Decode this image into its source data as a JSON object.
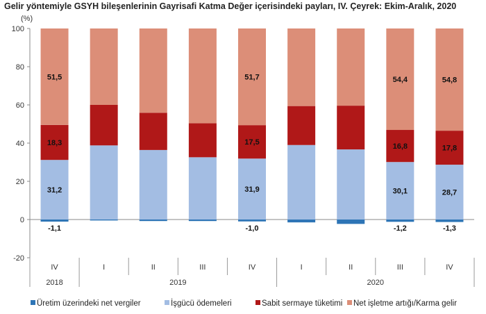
{
  "chart_data": {
    "type": "bar",
    "stacked": true,
    "title": "Gelir yöntemiyle GSYH bileşenlerinin Gayrisafi Katma Değer içerisindeki payları, IV. Çeyrek: Ekim-Aralık, 2020",
    "ylabel": "(%)",
    "ylim": [
      -20,
      100
    ],
    "yticks": [
      -20,
      0,
      20,
      40,
      60,
      80,
      100
    ],
    "grid": false,
    "legend": "bottom",
    "categories": [
      "IV",
      "I",
      "II",
      "III",
      "IV",
      "I",
      "II",
      "III",
      "IV"
    ],
    "year_groups": [
      {
        "label": "2018",
        "span": 1
      },
      {
        "label": "2019",
        "span": 4
      },
      {
        "label": "2020",
        "span": 4
      }
    ],
    "series": [
      {
        "name": "Üretim üzerindeki net vergiler",
        "color": "#2e75b6",
        "values": [
          -1.1,
          -0.5,
          -0.8,
          -0.8,
          -1.0,
          -1.5,
          -2.3,
          -1.2,
          -1.3
        ],
        "labels": [
          "-1,1",
          "",
          "",
          "",
          "-1,0",
          "",
          "",
          "-1,2",
          "-1,3"
        ]
      },
      {
        "name": "İşgücü ödemeleri",
        "color": "#a3bde3",
        "values": [
          31.2,
          38.8,
          36.4,
          32.6,
          31.9,
          39.0,
          36.7,
          30.1,
          28.7
        ],
        "labels": [
          "31,2",
          "",
          "",
          "",
          "31,9",
          "",
          "",
          "30,1",
          "28,7"
        ]
      },
      {
        "name": "Sabit sermaye tüketimi",
        "color": "#b01818",
        "values": [
          18.3,
          21.2,
          19.5,
          17.8,
          17.5,
          20.4,
          22.9,
          16.8,
          17.8
        ],
        "labels": [
          "18,3",
          "",
          "",
          "",
          "17,5",
          "",
          "",
          "16,8",
          "17,8"
        ]
      },
      {
        "name": "Net işletme artığı/Karma  gelir",
        "color": "#dc8e78",
        "values": [
          51.5,
          40.0,
          44.1,
          49.6,
          51.7,
          40.6,
          40.4,
          54.4,
          54.8
        ],
        "labels": [
          "51,5",
          "",
          "",
          "",
          "51,7",
          "",
          "",
          "54,4",
          "54,8"
        ]
      }
    ]
  }
}
